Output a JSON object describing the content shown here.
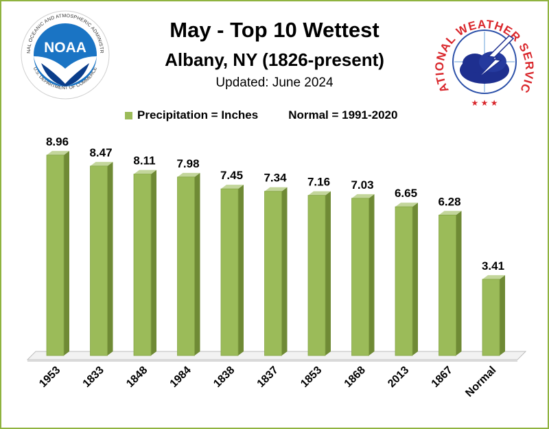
{
  "title": "May - Top 10 Wettest",
  "subtitle": "Albany, NY (1826-present)",
  "updated": "Updated: June 2024",
  "legend": {
    "series": "Precipitation = Inches",
    "normal": "Normal = 1991-2020"
  },
  "logos": {
    "noaa_ring_text": "NATIONAL OCEANIC AND ATMOSPHERIC ADMINISTRATION",
    "noaa_bottom_text": "U.S. DEPARTMENT OF COMMERCE",
    "noaa_center": "NOAA",
    "nws_ring_text": "NATIONAL WEATHER SERVICE"
  },
  "colors": {
    "bar_front": "#9bbb59",
    "bar_side": "#6f8a35",
    "bar_top": "#c3d69b",
    "frame": "#8fb33f"
  },
  "chart_data": {
    "type": "bar",
    "categories": [
      "1953",
      "1833",
      "1848",
      "1984",
      "1838",
      "1837",
      "1853",
      "1868",
      "2013",
      "1867",
      "Normal"
    ],
    "values": [
      8.96,
      8.47,
      8.11,
      7.98,
      7.45,
      7.34,
      7.16,
      7.03,
      6.65,
      6.28,
      3.41
    ],
    "ylim": [
      0,
      10
    ],
    "grid": false
  }
}
